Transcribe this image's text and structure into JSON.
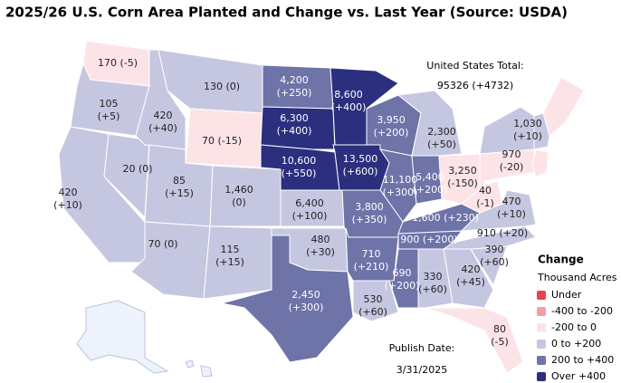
{
  "header": {
    "title": "2025/26 U.S. Corn Area Planted and Change vs. Last Year (Source: USDA)"
  },
  "total": {
    "label": "United States Total:",
    "value": "95326 (+4732)"
  },
  "publish": {
    "label": "Publish Date:",
    "value": "3/31/2025"
  },
  "legend": {
    "title": "Change",
    "subtitle": "Thousand Acres",
    "items": [
      {
        "label": "Under",
        "color": "#e8424c"
      },
      {
        "label": "-400 to -200",
        "color": "#f2a0a6"
      },
      {
        "label": "-200 to 0",
        "color": "#fce4e6"
      },
      {
        "label": "0 to +200",
        "color": "#c5c7e0"
      },
      {
        "label": "200 to +400",
        "color": "#6e73a8"
      },
      {
        "label": "Over +400",
        "color": "#2b2f7e"
      }
    ]
  },
  "states": [
    {
      "area": "170",
      "change": "(-5)",
      "color": "#fce4e6"
    },
    {
      "area": "105",
      "change": "(+5)",
      "color": "#c5c7e0"
    },
    {
      "area": "420",
      "change": "(+10)",
      "color": "#c5c7e0"
    },
    {
      "area": "20",
      "change": "(0)",
      "color": "#c5c7e0"
    },
    {
      "area": "420",
      "change": "(+40)",
      "color": "#c5c7e0"
    },
    {
      "area": "130",
      "change": "(0)",
      "color": "#c5c7e0"
    },
    {
      "area": "70",
      "change": "(-15)",
      "color": "#fce4e6"
    },
    {
      "area": "85",
      "change": "(+15)",
      "color": "#c5c7e0"
    },
    {
      "area": "1,460",
      "change": "(0)",
      "color": "#c5c7e0"
    },
    {
      "area": "70",
      "change": "(0)",
      "color": "#c5c7e0"
    },
    {
      "area": "115",
      "change": "(+15)",
      "color": "#c5c7e0"
    },
    {
      "area": "4,200",
      "change": "(+250)",
      "color": "#6e73a8"
    },
    {
      "area": "6,300",
      "change": "(+400)",
      "color": "#2b2f7e"
    },
    {
      "area": "10,600",
      "change": "(+550)",
      "color": "#2b2f7e"
    },
    {
      "area": "6,400",
      "change": "(+100)",
      "color": "#c5c7e0"
    },
    {
      "area": "480",
      "change": "(+30)",
      "color": "#c5c7e0"
    },
    {
      "area": "2,450",
      "change": "(+300)",
      "color": "#6e73a8"
    },
    {
      "area": "8,600",
      "change": "(+400)",
      "color": "#2b2f7e"
    },
    {
      "area": "13,500",
      "change": "(+600)",
      "color": "#2b2f7e"
    },
    {
      "area": "3,950",
      "change": "(+200)",
      "color": "#6e73a8"
    },
    {
      "area": "2,300",
      "change": "(+50)",
      "color": "#c5c7e0"
    },
    {
      "area": "11,100",
      "change": "(+300)",
      "color": "#6e73a8"
    },
    {
      "area": "5,400",
      "change": "(+200)",
      "color": "#6e73a8"
    },
    {
      "area": "3,250",
      "change": "(-150)",
      "color": "#fce4e6"
    },
    {
      "area": "3,800",
      "change": "(+350)",
      "color": "#6e73a8"
    },
    {
      "area": "710",
      "change": "(+210)",
      "color": "#6e73a8"
    },
    {
      "area": "530",
      "change": "(+60)",
      "color": "#c5c7e0"
    },
    {
      "area": "690",
      "change": "(+200)",
      "color": "#6e73a8"
    },
    {
      "area": "330",
      "change": "(+60)",
      "color": "#c5c7e0"
    },
    {
      "area": "420",
      "change": "(+45)",
      "color": "#c5c7e0"
    },
    {
      "area": "80",
      "change": "(-5)",
      "color": "#fce4e6"
    },
    {
      "area": "390",
      "change": "(+60)",
      "color": "#c5c7e0"
    },
    {
      "area": "910",
      "change": "(+20)",
      "color": "#c5c7e0"
    },
    {
      "area": "900",
      "change": "(+200)",
      "color": "#6e73a8"
    },
    {
      "area": "1,600",
      "change": "(+230)",
      "color": "#6e73a8"
    },
    {
      "area": "40",
      "change": "(-1)",
      "color": "#fce4e6"
    },
    {
      "area": "470",
      "change": "(+10)",
      "color": "#c5c7e0"
    },
    {
      "area": "970",
      "change": "(-20)",
      "color": "#fce4e6"
    },
    {
      "area": "1,030",
      "change": "(+10)",
      "color": "#c5c7e0"
    }
  ]
}
